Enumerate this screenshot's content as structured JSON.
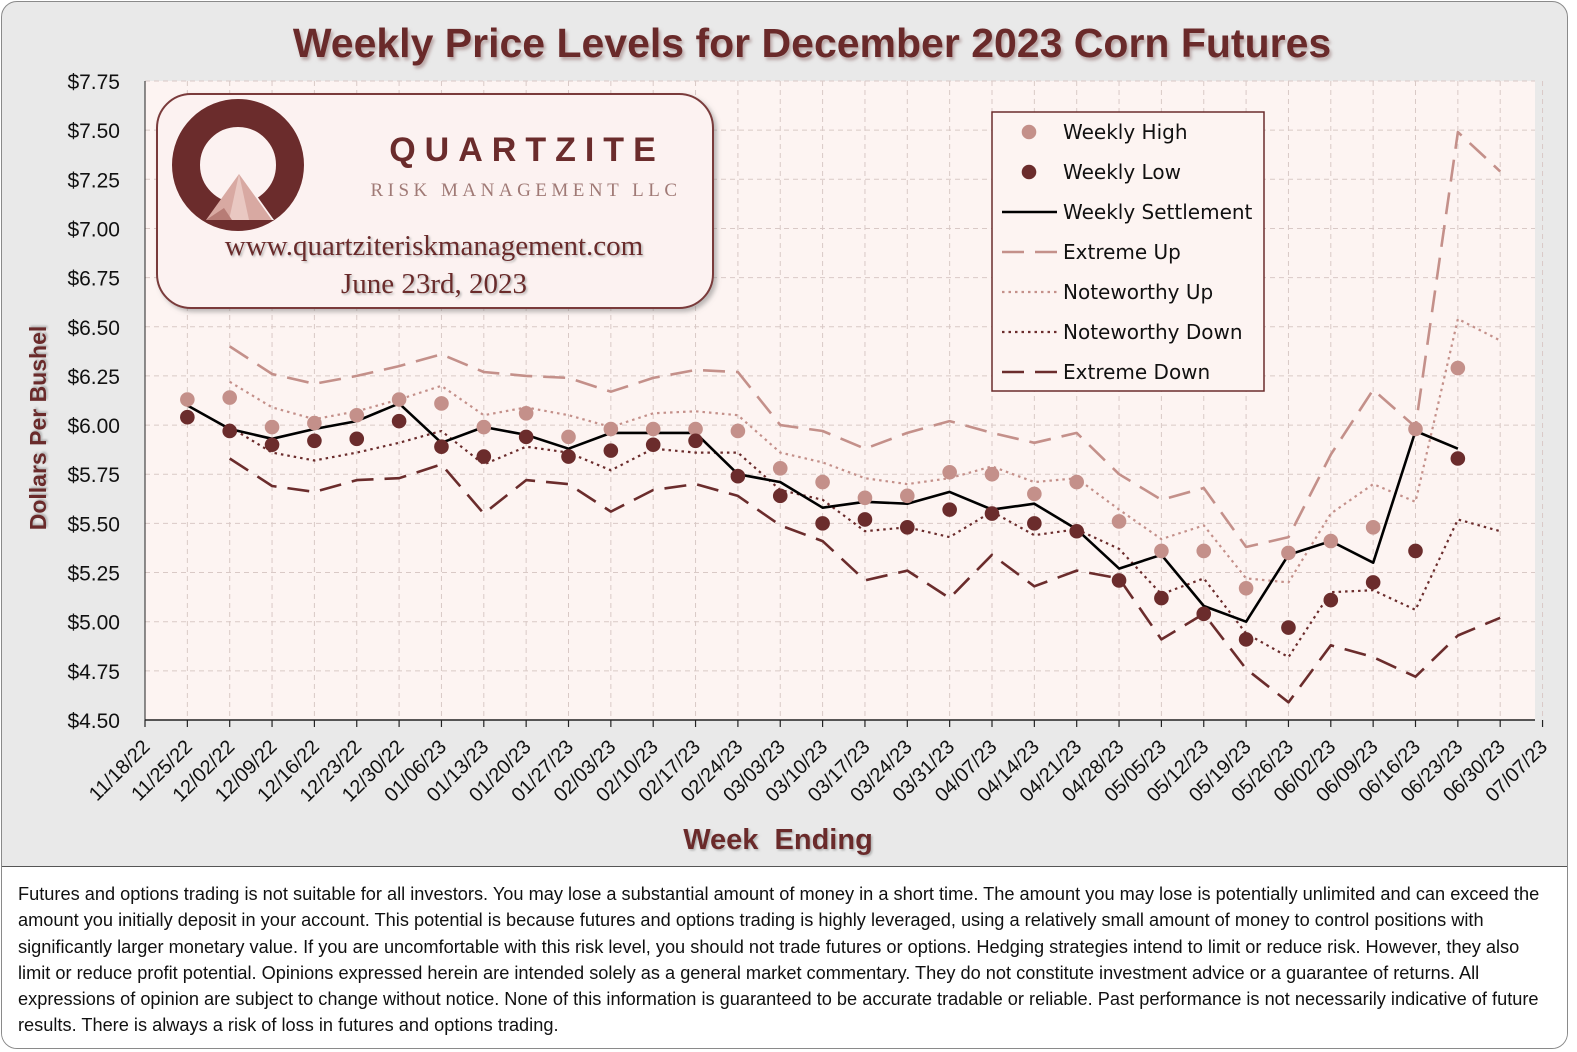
{
  "chart_data": {
    "type": "line",
    "title": "Weekly Price Levels for December 2023 Corn Futures",
    "xlabel": "Week  Ending",
    "ylabel": "Dollars Per Bushel",
    "ylim": [
      4.5,
      7.75
    ],
    "grid": true,
    "legend_position": "top-right",
    "y_ticks": [
      "$4.50",
      "$4.75",
      "$5.00",
      "$5.25",
      "$5.50",
      "$5.75",
      "$6.00",
      "$6.25",
      "$6.50",
      "$6.75",
      "$7.00",
      "$7.25",
      "$7.50",
      "$7.75"
    ],
    "categories": [
      "11/18/22",
      "11/25/22",
      "12/02/22",
      "12/09/22",
      "12/16/22",
      "12/23/22",
      "12/30/22",
      "01/06/23",
      "01/13/23",
      "01/20/23",
      "01/27/23",
      "02/03/23",
      "02/10/23",
      "02/17/23",
      "02/24/23",
      "03/03/23",
      "03/10/23",
      "03/17/23",
      "03/24/23",
      "03/31/23",
      "04/07/23",
      "04/14/23",
      "04/21/23",
      "04/28/23",
      "05/05/23",
      "05/12/23",
      "05/19/23",
      "05/26/23",
      "06/02/23",
      "06/09/23",
      "06/16/23",
      "06/23/23",
      "06/30/23",
      "07/07/23"
    ],
    "series": [
      {
        "name": "Weekly High",
        "style": "marker",
        "color": "#c4908a",
        "values": [
          null,
          6.13,
          6.14,
          5.99,
          6.01,
          6.05,
          6.13,
          6.11,
          5.99,
          6.06,
          5.94,
          5.98,
          5.98,
          5.98,
          5.97,
          5.78,
          5.71,
          5.63,
          5.64,
          5.76,
          5.75,
          5.65,
          5.71,
          5.51,
          5.36,
          5.36,
          5.17,
          5.35,
          5.41,
          5.48,
          5.98,
          6.29,
          null,
          null
        ]
      },
      {
        "name": "Weekly Low",
        "style": "marker",
        "color": "#6b2c2c",
        "values": [
          null,
          6.04,
          5.97,
          5.9,
          5.92,
          5.93,
          6.02,
          5.89,
          5.84,
          5.94,
          5.84,
          5.87,
          5.9,
          5.92,
          5.74,
          5.64,
          5.5,
          5.52,
          5.48,
          5.57,
          5.55,
          5.5,
          5.46,
          5.21,
          5.12,
          5.04,
          4.91,
          4.97,
          5.11,
          5.2,
          5.36,
          5.83,
          null,
          null
        ]
      },
      {
        "name": "Weekly Settlement",
        "style": "solid",
        "color": "#000000",
        "values": [
          null,
          6.1,
          5.98,
          5.93,
          5.98,
          6.02,
          6.11,
          5.91,
          5.99,
          5.95,
          5.88,
          5.96,
          5.96,
          5.96,
          5.75,
          5.71,
          5.58,
          5.61,
          5.6,
          5.66,
          5.57,
          5.6,
          5.47,
          5.27,
          5.34,
          5.08,
          5.0,
          5.34,
          5.41,
          5.3,
          5.97,
          5.88,
          null,
          null
        ]
      },
      {
        "name": "Extreme Up",
        "style": "longdash",
        "color": "#c4908a",
        "values": [
          null,
          null,
          6.4,
          6.26,
          6.21,
          6.25,
          6.3,
          6.36,
          6.27,
          6.25,
          6.24,
          6.17,
          6.24,
          6.28,
          6.27,
          6.0,
          5.97,
          5.88,
          5.96,
          6.02,
          5.96,
          5.91,
          5.96,
          5.75,
          5.62,
          5.68,
          5.38,
          5.43,
          5.85,
          6.18,
          5.99,
          7.49,
          7.29,
          null
        ]
      },
      {
        "name": "Noteworthy Up",
        "style": "dotted",
        "color": "#c4908a",
        "values": [
          null,
          null,
          6.22,
          6.09,
          6.03,
          6.07,
          6.13,
          6.2,
          6.05,
          6.09,
          6.05,
          5.99,
          6.06,
          6.07,
          6.05,
          5.86,
          5.81,
          5.73,
          5.7,
          5.73,
          5.79,
          5.71,
          5.73,
          5.57,
          5.42,
          5.49,
          5.22,
          5.2,
          5.55,
          5.7,
          5.61,
          6.54,
          6.43,
          null
        ]
      },
      {
        "name": "Noteworthy Down",
        "style": "dotted",
        "color": "#6b2c2c",
        "values": [
          null,
          null,
          5.99,
          5.86,
          5.82,
          5.86,
          5.91,
          5.97,
          5.8,
          5.89,
          5.86,
          5.77,
          5.88,
          5.86,
          5.86,
          5.67,
          5.62,
          5.46,
          5.48,
          5.43,
          5.56,
          5.44,
          5.47,
          5.37,
          5.14,
          5.22,
          4.94,
          4.82,
          5.15,
          5.16,
          5.06,
          5.52,
          5.46,
          null
        ]
      },
      {
        "name": "Extreme Down",
        "style": "longdash",
        "color": "#6b2c2c",
        "values": [
          null,
          null,
          5.83,
          5.69,
          5.66,
          5.72,
          5.73,
          5.8,
          5.55,
          5.72,
          5.7,
          5.56,
          5.67,
          5.7,
          5.64,
          5.49,
          5.41,
          5.21,
          5.26,
          5.12,
          5.34,
          5.18,
          5.26,
          5.22,
          4.91,
          5.04,
          4.76,
          4.59,
          4.88,
          4.82,
          4.72,
          4.93,
          5.02,
          null
        ]
      }
    ]
  },
  "logo": {
    "brand": "QUARTZITE",
    "subtitle": "RISK MANAGEMENT LLC",
    "website": "www.quartziteriskmanagement.com",
    "date": "June 23rd, 2023"
  },
  "disclaimer": "Futures and options trading is not suitable for all investors. You may lose a substantial amount of money in a short time. The amount you may lose is potentially unlimited and can exceed the amount you initially deposit in your account. This potential is because futures and options trading is highly leveraged, using a relatively small amount of money to control positions with significantly larger monetary value. If you are uncomfortable with this risk level, you should not trade futures or options. Hedging strategies intend to limit or reduce risk. However, they also limit or reduce profit potential. Opinions expressed herein are intended solely as a general market commentary. They do not constitute investment advice or a guarantee of returns. All expressions of opinion are subject to change without notice. None of this information is guaranteed to be accurate tradable or reliable. Past performance is not necessarily indicative of future results. There is always a risk of loss in futures and options trading.",
  "colors": {
    "title": "#6b2c2c",
    "plot_background": "#fdf4f2",
    "grid": "#dcc8c4",
    "high": "#c4908a",
    "low": "#6b2c2c"
  }
}
